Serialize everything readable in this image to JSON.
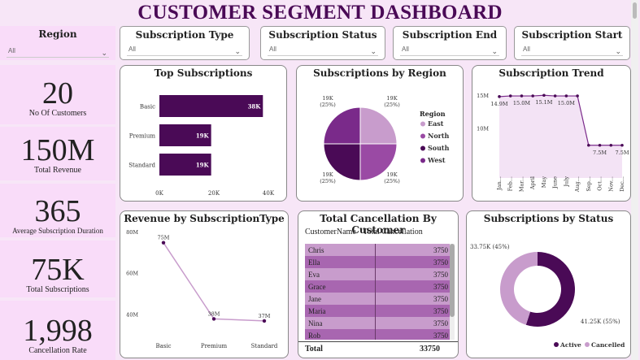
{
  "title": "CUSTOMER SEGMENT DASHBOARD",
  "slicers": {
    "region": {
      "label": "Region",
      "value": "All"
    },
    "subscription_type": {
      "label": "Subscription Type",
      "value": "All"
    },
    "subscription_status": {
      "label": "Subscription Status",
      "value": "All"
    },
    "subscription_end": {
      "label": "Subscription End",
      "value": "All"
    },
    "subscription_start": {
      "label": "Subscription Start",
      "value": "All"
    }
  },
  "kpis": [
    {
      "value": "20",
      "label": "No Of Customers"
    },
    {
      "value": "150M",
      "label": "Total Revenue"
    },
    {
      "value": "365",
      "label": "Average Subscription Duration"
    },
    {
      "value": "75K",
      "label": "Total Subscriptions"
    },
    {
      "value": "1,998",
      "label": "Cancellation Rate"
    }
  ],
  "colors": {
    "dark": "#4a0a56",
    "medium": "#9a4aa4",
    "light": "#c89ccc",
    "bg": "#f7e6f7"
  },
  "chart_data": [
    {
      "id": "top_subscriptions",
      "type": "bar",
      "title": "Top Subscriptions",
      "categories": [
        "Basic",
        "Premium",
        "Standard"
      ],
      "values": [
        38,
        19,
        19
      ],
      "data_labels": [
        "38K",
        "19K",
        "19K"
      ],
      "xticks": [
        "0K",
        "20K",
        "40K"
      ],
      "xlim": [
        0,
        40
      ]
    },
    {
      "id": "subscriptions_by_region",
      "type": "pie",
      "title": "Subscriptions by Region",
      "legend_title": "Region",
      "legend": "right",
      "categories": [
        "East",
        "North",
        "South",
        "West"
      ],
      "values": [
        25,
        25,
        25,
        25
      ],
      "data_labels": [
        {
          "value": "19K",
          "pct": "(25%)"
        },
        {
          "value": "19K",
          "pct": "(25%)"
        },
        {
          "value": "19K",
          "pct": "(25%)"
        },
        {
          "value": "19K",
          "pct": "(25%)"
        }
      ]
    },
    {
      "id": "subscription_trend",
      "type": "area",
      "title": "Subscription Trend",
      "categories": [
        "January",
        "February",
        "March",
        "April",
        "May",
        "June",
        "July",
        "August",
        "September",
        "October",
        "November",
        "December"
      ],
      "tick_labels": [
        "Jan...",
        "Feb...",
        "Mar...",
        "April",
        "May",
        "June",
        "July",
        "Aug...",
        "Sep...",
        "Oct...",
        "Nov...",
        "Dec..."
      ],
      "values": [
        14.9,
        15.0,
        15.0,
        15.0,
        15.1,
        15.0,
        15.0,
        15.0,
        7.5,
        7.5,
        7.5,
        7.5
      ],
      "point_labels": [
        "14.9M",
        "",
        "15.0M",
        "",
        "15.1M",
        "",
        "15.0M",
        "",
        "",
        "7.5M",
        "",
        "7.5M"
      ],
      "yticks": [
        "15M",
        "10M"
      ],
      "ylim": [
        5,
        15.5
      ]
    },
    {
      "id": "revenue_by_subscription_type",
      "type": "line",
      "title": "Revenue by SubscriptionType",
      "categories": [
        "Basic",
        "Premium",
        "Standard"
      ],
      "values": [
        75,
        38,
        37
      ],
      "data_labels": [
        "75M",
        "38M",
        "37M"
      ],
      "yticks": [
        "80M",
        "60M",
        "40M"
      ],
      "ylim": [
        35,
        80
      ]
    },
    {
      "id": "total_cancellation_by_customer",
      "type": "table",
      "title": "Total Cancellation By Customer",
      "columns": [
        "CustomerName",
        "Total Cancellation"
      ],
      "rows": [
        [
          "Chris",
          "3750"
        ],
        [
          "Ella",
          "3750"
        ],
        [
          "Eva",
          "3750"
        ],
        [
          "Grace",
          "3750"
        ],
        [
          "Jane",
          "3750"
        ],
        [
          "Maria",
          "3750"
        ],
        [
          "Nina",
          "3750"
        ],
        [
          "Rob",
          "3750"
        ]
      ],
      "total_label": "Total",
      "total_value": "33750"
    },
    {
      "id": "subscriptions_by_status",
      "type": "pie",
      "title": "Subscriptions by Status",
      "legend": "bottom-right",
      "categories": [
        "Active",
        "Cancelled"
      ],
      "values": [
        55,
        45
      ],
      "data_labels": [
        "41.25K (55%)",
        "33.75K (45%)"
      ]
    }
  ]
}
